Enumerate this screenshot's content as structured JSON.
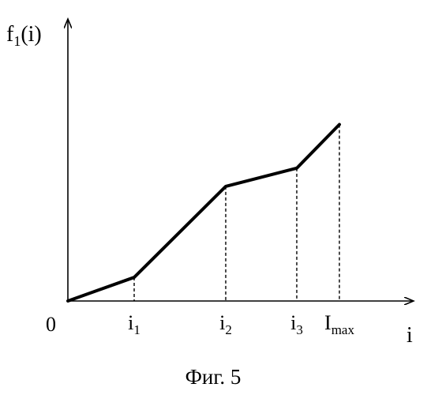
{
  "figure": {
    "caption": "Фиг. 5"
  },
  "chart_data": {
    "type": "line",
    "title": "",
    "xlabel": "i",
    "ylabel_main": "f",
    "ylabel_sub": "1",
    "ylabel_tail": "(i)",
    "origin_label": "0",
    "x_ticks": [
      {
        "main": "i",
        "sub": "1",
        "value": 1
      },
      {
        "main": "i",
        "sub": "2",
        "value": 2
      },
      {
        "main": "i",
        "sub": "3",
        "value": 3
      },
      {
        "main": "I",
        "sub": "max",
        "value": 4
      }
    ],
    "series": [
      {
        "x": [
          0,
          1,
          2,
          3,
          4
        ],
        "y": [
          0,
          0.13,
          0.63,
          0.73,
          0.97
        ]
      }
    ],
    "dashed_guides_at_points": [
      1,
      2,
      3,
      4
    ],
    "grid": false,
    "xlim": [
      0,
      4.45
    ],
    "ylim": [
      0,
      1.55
    ]
  }
}
